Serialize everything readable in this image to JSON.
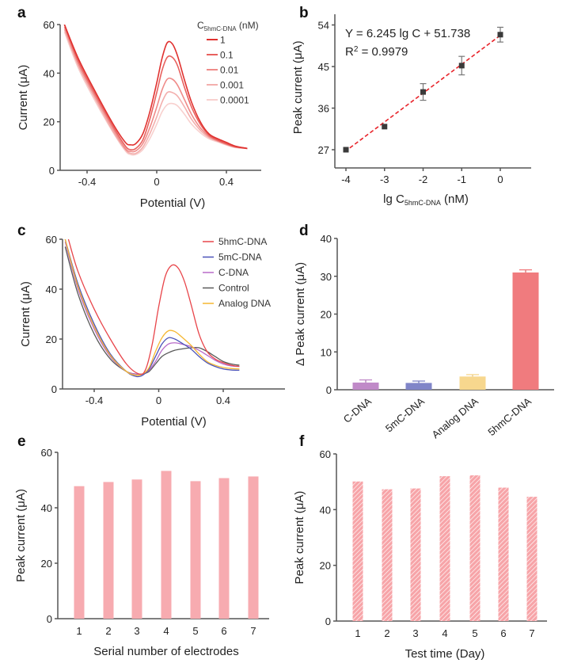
{
  "figure": {
    "panels": [
      "a",
      "b",
      "c",
      "d",
      "e",
      "f"
    ]
  },
  "chart_data": [
    {
      "id": "a",
      "panel_label": "a",
      "type": "line",
      "xlabel": "Potential (V)",
      "ylabel": "Current (μA)",
      "xlim": [
        -0.58,
        0.62
      ],
      "ylim": [
        0,
        60
      ],
      "xticks": [
        -0.4,
        0,
        0.4
      ],
      "xtick_labels": [
        "-0.4",
        "0",
        "0.4"
      ],
      "yticks": [
        0,
        20,
        40,
        60
      ],
      "ytick_labels": [
        "0",
        "20",
        "40",
        "60"
      ],
      "legend": {
        "title_main": "C",
        "title_sub": "5hmC-DNA",
        "title_unit": " (nM)",
        "placement": "top-right"
      },
      "series": [
        {
          "name": "1",
          "color": "#e0312f",
          "opacity": 1.0,
          "x": [
            -0.53,
            -0.45,
            -0.35,
            -0.25,
            -0.18,
            -0.15,
            -0.12,
            -0.08,
            -0.04,
            0.0,
            0.03,
            0.06,
            0.09,
            0.12,
            0.16,
            0.2,
            0.25,
            0.3,
            0.35,
            0.4,
            0.45,
            0.52
          ],
          "y": [
            60,
            46,
            32,
            19,
            11.5,
            10.5,
            11,
            15,
            24,
            36,
            46,
            52.5,
            52,
            47,
            37,
            28,
            20,
            15,
            13,
            11.5,
            10,
            9
          ]
        },
        {
          "name": "0.1",
          "color": "#e6504c",
          "opacity": 0.9,
          "x": [
            -0.53,
            -0.45,
            -0.35,
            -0.25,
            -0.18,
            -0.15,
            -0.12,
            -0.08,
            -0.04,
            0.0,
            0.03,
            0.06,
            0.09,
            0.12,
            0.16,
            0.2,
            0.25,
            0.3,
            0.35,
            0.4,
            0.45,
            0.52
          ],
          "y": [
            60,
            45,
            31,
            18,
            10,
            8.5,
            9,
            12.5,
            21,
            32,
            41,
            46.5,
            46.5,
            43,
            34,
            26,
            19,
            14.5,
            12.5,
            11,
            9.8,
            9
          ]
        },
        {
          "name": "0.01",
          "color": "#ec7774",
          "opacity": 0.85,
          "x": [
            -0.53,
            -0.45,
            -0.35,
            -0.25,
            -0.18,
            -0.15,
            -0.12,
            -0.08,
            -0.04,
            0.0,
            0.03,
            0.06,
            0.09,
            0.12,
            0.16,
            0.2,
            0.25,
            0.3,
            0.35,
            0.4,
            0.45,
            0.52
          ],
          "y": [
            59,
            44,
            30,
            17,
            9,
            7.8,
            8,
            11,
            17.5,
            26,
            33,
            37.5,
            37.5,
            35,
            29,
            23,
            17.5,
            14,
            12.2,
            10.8,
            9.6,
            9
          ]
        },
        {
          "name": "0.001",
          "color": "#f09b98",
          "opacity": 0.8,
          "x": [
            -0.53,
            -0.45,
            -0.35,
            -0.25,
            -0.18,
            -0.15,
            -0.12,
            -0.08,
            -0.04,
            0.0,
            0.03,
            0.06,
            0.09,
            0.12,
            0.16,
            0.2,
            0.25,
            0.3,
            0.35,
            0.4,
            0.45,
            0.52
          ],
          "y": [
            58,
            43,
            29,
            16,
            8.5,
            7,
            7,
            9.5,
            15,
            22,
            28,
            32,
            32,
            30.5,
            26,
            21,
            16.5,
            13.5,
            12,
            10.6,
            9.5,
            9
          ]
        },
        {
          "name": "0.0001",
          "color": "#f6c4c2",
          "opacity": 0.8,
          "x": [
            -0.53,
            -0.45,
            -0.35,
            -0.25,
            -0.18,
            -0.15,
            -0.12,
            -0.08,
            -0.04,
            0.0,
            0.03,
            0.06,
            0.09,
            0.12,
            0.16,
            0.2,
            0.25,
            0.3,
            0.35,
            0.4,
            0.45,
            0.52
          ],
          "y": [
            57,
            42,
            28,
            15.5,
            8,
            6.5,
            6.5,
            8.5,
            13,
            19,
            24,
            27,
            27.5,
            26.5,
            23,
            19,
            15.5,
            13,
            11.7,
            10.4,
            9.4,
            9
          ]
        }
      ]
    },
    {
      "id": "b",
      "panel_label": "b",
      "type": "scatter",
      "xlabel_main": "lg C",
      "xlabel_sub": "5hmC-DNA",
      "xlabel_unit": " (nM)",
      "ylabel": "Peak current (μA)",
      "xlim": [
        -4.3,
        0.8
      ],
      "ylim": [
        23,
        56
      ],
      "xticks": [
        -4,
        -3,
        -2,
        -1,
        0
      ],
      "xtick_labels": [
        "-4",
        "-3",
        "-2",
        "-1",
        "0"
      ],
      "yticks": [
        27,
        36,
        45,
        54
      ],
      "ytick_labels": [
        "27",
        "36",
        "45",
        "54"
      ],
      "equation": "Y = 6.245 lg C + 51.738",
      "r2_label": "R",
      "r2_sup": "2",
      "r2_value": " = 0.9979",
      "fit": {
        "slope": 6.245,
        "intercept": 51.738,
        "color": "#e8232a",
        "style": "dashed"
      },
      "points": {
        "x": [
          -4,
          -3,
          -2,
          -1,
          0
        ],
        "y": [
          27.0,
          32.0,
          39.5,
          45.2,
          51.9
        ],
        "err": [
          0.3,
          0.3,
          1.8,
          2.0,
          1.6
        ],
        "color": "#3a3a3a"
      }
    },
    {
      "id": "c",
      "panel_label": "c",
      "type": "line",
      "xlabel": "Potential (V)",
      "ylabel": "Current (μA)",
      "xlim": [
        -0.58,
        0.78
      ],
      "ylim": [
        0,
        60
      ],
      "xticks": [
        -0.4,
        0,
        0.4
      ],
      "xtick_labels": [
        "-0.4",
        "0",
        "0.4"
      ],
      "yticks": [
        0,
        20,
        40,
        60
      ],
      "ytick_labels": [
        "0",
        "20",
        "40",
        "60"
      ],
      "legend": {
        "placement": "top-right"
      },
      "series": [
        {
          "name": "5hmC-DNA",
          "color": "#e8454a",
          "x": [
            -0.56,
            -0.5,
            -0.4,
            -0.3,
            -0.2,
            -0.12,
            -0.08,
            -0.04,
            0.0,
            0.04,
            0.08,
            0.12,
            0.16,
            0.2,
            0.25,
            0.3,
            0.35,
            0.4,
            0.45,
            0.5
          ],
          "y": [
            60,
            47,
            32,
            20,
            10,
            6,
            8,
            18,
            33,
            45,
            49.5,
            48.5,
            43,
            34,
            22,
            15,
            12,
            10.5,
            9.5,
            9
          ]
        },
        {
          "name": "5mC-DNA",
          "color": "#4a52b8",
          "x": [
            -0.58,
            -0.5,
            -0.4,
            -0.3,
            -0.2,
            -0.14,
            -0.1,
            -0.06,
            -0.02,
            0.02,
            0.06,
            0.1,
            0.14,
            0.2,
            0.25,
            0.3,
            0.35,
            0.4,
            0.45,
            0.5
          ],
          "y": [
            60,
            42,
            26,
            14,
            7,
            5,
            5.5,
            8,
            13,
            18,
            20.5,
            20,
            18.5,
            16,
            13,
            10.5,
            9,
            8,
            7.6,
            7.5
          ]
        },
        {
          "name": "C-DNA",
          "color": "#b86bc8",
          "x": [
            -0.58,
            -0.5,
            -0.4,
            -0.3,
            -0.2,
            -0.14,
            -0.1,
            -0.06,
            -0.02,
            0.02,
            0.06,
            0.1,
            0.14,
            0.2,
            0.25,
            0.3,
            0.35,
            0.4,
            0.45,
            0.5
          ],
          "y": [
            59,
            40,
            24,
            13,
            7,
            6,
            6,
            7.5,
            11,
            15.5,
            18,
            18.5,
            18,
            17,
            15.5,
            13.5,
            11.5,
            10,
            9.2,
            9
          ]
        },
        {
          "name": "Control",
          "color": "#5a5a5a",
          "x": [
            -0.58,
            -0.5,
            -0.4,
            -0.3,
            -0.2,
            -0.14,
            -0.1,
            -0.06,
            -0.02,
            0.02,
            0.06,
            0.1,
            0.14,
            0.2,
            0.25,
            0.3,
            0.35,
            0.4,
            0.45,
            0.5
          ],
          "y": [
            57,
            38,
            22,
            12,
            7,
            6,
            6,
            7,
            10,
            13,
            14.5,
            15.5,
            16,
            16.5,
            16.5,
            15,
            13,
            11,
            10,
            9.5
          ]
        },
        {
          "name": "Analog DNA",
          "color": "#f5b731",
          "x": [
            -0.58,
            -0.5,
            -0.4,
            -0.3,
            -0.2,
            -0.14,
            -0.1,
            -0.06,
            -0.02,
            0.02,
            0.06,
            0.1,
            0.14,
            0.2,
            0.25,
            0.3,
            0.35,
            0.4,
            0.45,
            0.5
          ],
          "y": [
            60,
            41,
            25,
            13.5,
            7,
            5.5,
            6,
            8.5,
            15,
            20.5,
            23.3,
            23,
            21,
            17.5,
            14,
            11,
            9.5,
            8.6,
            8.2,
            8
          ]
        }
      ]
    },
    {
      "id": "d",
      "panel_label": "d",
      "type": "bar",
      "ylabel": "Δ Peak current (μA)",
      "ylim": [
        0,
        40
      ],
      "yticks": [
        0,
        10,
        20,
        30,
        40
      ],
      "ytick_labels": [
        "0",
        "10",
        "20",
        "30",
        "40"
      ],
      "categories": [
        "C-DNA",
        "5mC-DNA",
        "Analog DNA",
        "5hmC-DNA"
      ],
      "values": [
        1.9,
        1.8,
        3.5,
        31.0
      ],
      "errors": [
        0.7,
        0.5,
        0.5,
        0.7
      ],
      "colors": [
        "#c08ac8",
        "#8085c8",
        "#f7d78e",
        "#f07b7e"
      ]
    },
    {
      "id": "e",
      "panel_label": "e",
      "type": "bar",
      "xlabel": "Serial number of electrodes",
      "ylabel": "Peak current (μA)",
      "ylim": [
        0,
        60
      ],
      "yticks": [
        0,
        20,
        40,
        60
      ],
      "ytick_labels": [
        "0",
        "20",
        "40",
        "60"
      ],
      "categories": [
        "1",
        "2",
        "3",
        "4",
        "5",
        "6",
        "7"
      ],
      "values": [
        47.8,
        49.3,
        50.2,
        53.3,
        49.6,
        50.7,
        51.3
      ],
      "color": "#f7abb0",
      "pattern": "solid"
    },
    {
      "id": "f",
      "panel_label": "f",
      "type": "bar",
      "xlabel": "Test time (Day)",
      "ylabel": "Peak current (μA)",
      "ylim": [
        0,
        60
      ],
      "yticks": [
        0,
        20,
        40,
        60
      ],
      "ytick_labels": [
        "0",
        "20",
        "40",
        "60"
      ],
      "categories": [
        "1",
        "2",
        "3",
        "4",
        "5",
        "6",
        "7"
      ],
      "values": [
        50.1,
        47.3,
        47.6,
        52.0,
        52.3,
        47.9,
        44.6
      ],
      "color": "#f7a4a8",
      "pattern": "hatched"
    }
  ]
}
